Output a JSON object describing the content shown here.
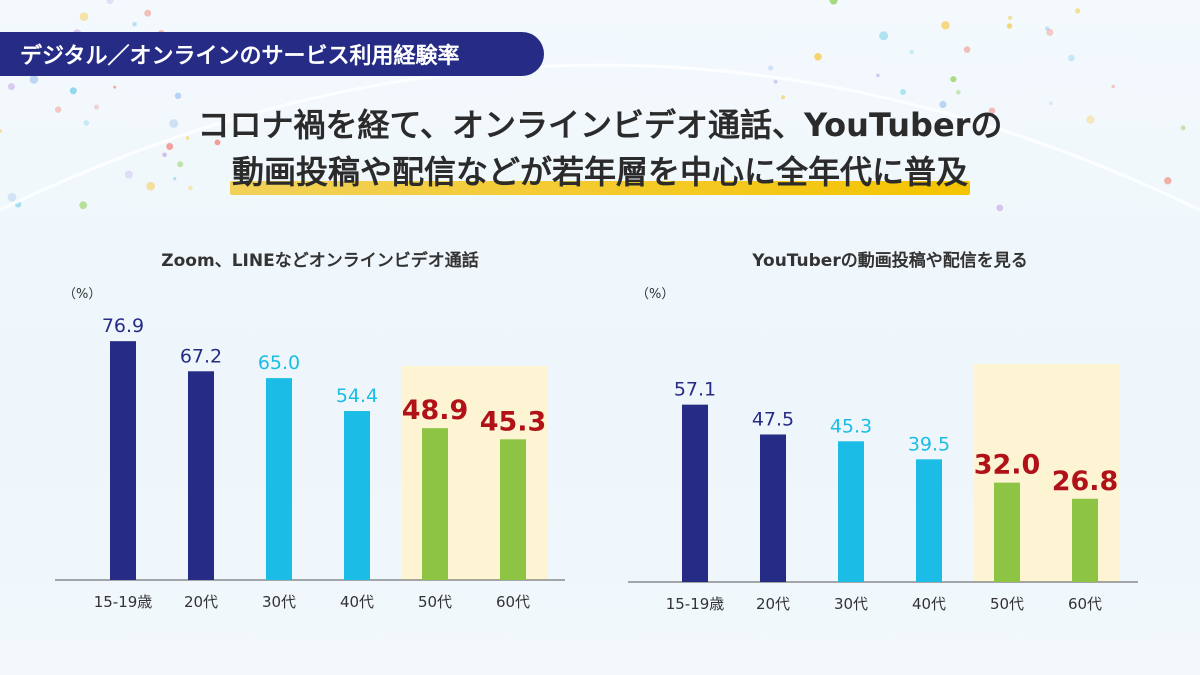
{
  "header": {
    "tag": "デジタル／オンラインのサービス利用経験率",
    "headline_line1": "コロナ禍を経て、オンラインビデオ通話、YouTuberの",
    "headline_line2": "動画投稿や配信などが若年層を中心に全年代に普及"
  },
  "colors": {
    "navy": "#262c86",
    "cyan": "#1bbde6",
    "green": "#8ec444",
    "highlight_text": "#b01217",
    "highlight_bg": "#fdf4d4"
  },
  "chart_data": [
    {
      "type": "bar",
      "title": "Zoom、LINEなどオンラインビデオ通話",
      "unit_label": "（%）",
      "categories": [
        "15-19歳",
        "20代",
        "30代",
        "40代",
        "50代",
        "60代"
      ],
      "values": [
        76.9,
        67.2,
        65.0,
        54.4,
        48.9,
        45.3
      ],
      "value_labels": [
        "76.9",
        "67.2",
        "65.0",
        "54.4",
        "48.9",
        "45.3"
      ],
      "bar_colors": [
        "navy",
        "navy",
        "cyan",
        "cyan",
        "green",
        "green"
      ],
      "highlighted_categories": [
        "50代",
        "60代"
      ],
      "ylim": [
        0,
        85
      ],
      "grid": false
    },
    {
      "type": "bar",
      "title": "YouTuberの動画投稿や配信を見る",
      "unit_label": "（%）",
      "categories": [
        "15-19歳",
        "20代",
        "30代",
        "40代",
        "50代",
        "60代"
      ],
      "values": [
        57.1,
        47.5,
        45.3,
        39.5,
        32.0,
        26.8
      ],
      "value_labels": [
        "57.1",
        "47.5",
        "45.3",
        "39.5",
        "32.0",
        "26.8"
      ],
      "bar_colors": [
        "navy",
        "navy",
        "cyan",
        "cyan",
        "green",
        "green"
      ],
      "highlighted_categories": [
        "50代",
        "60代"
      ],
      "ylim": [
        0,
        85
      ],
      "grid": false
    }
  ]
}
